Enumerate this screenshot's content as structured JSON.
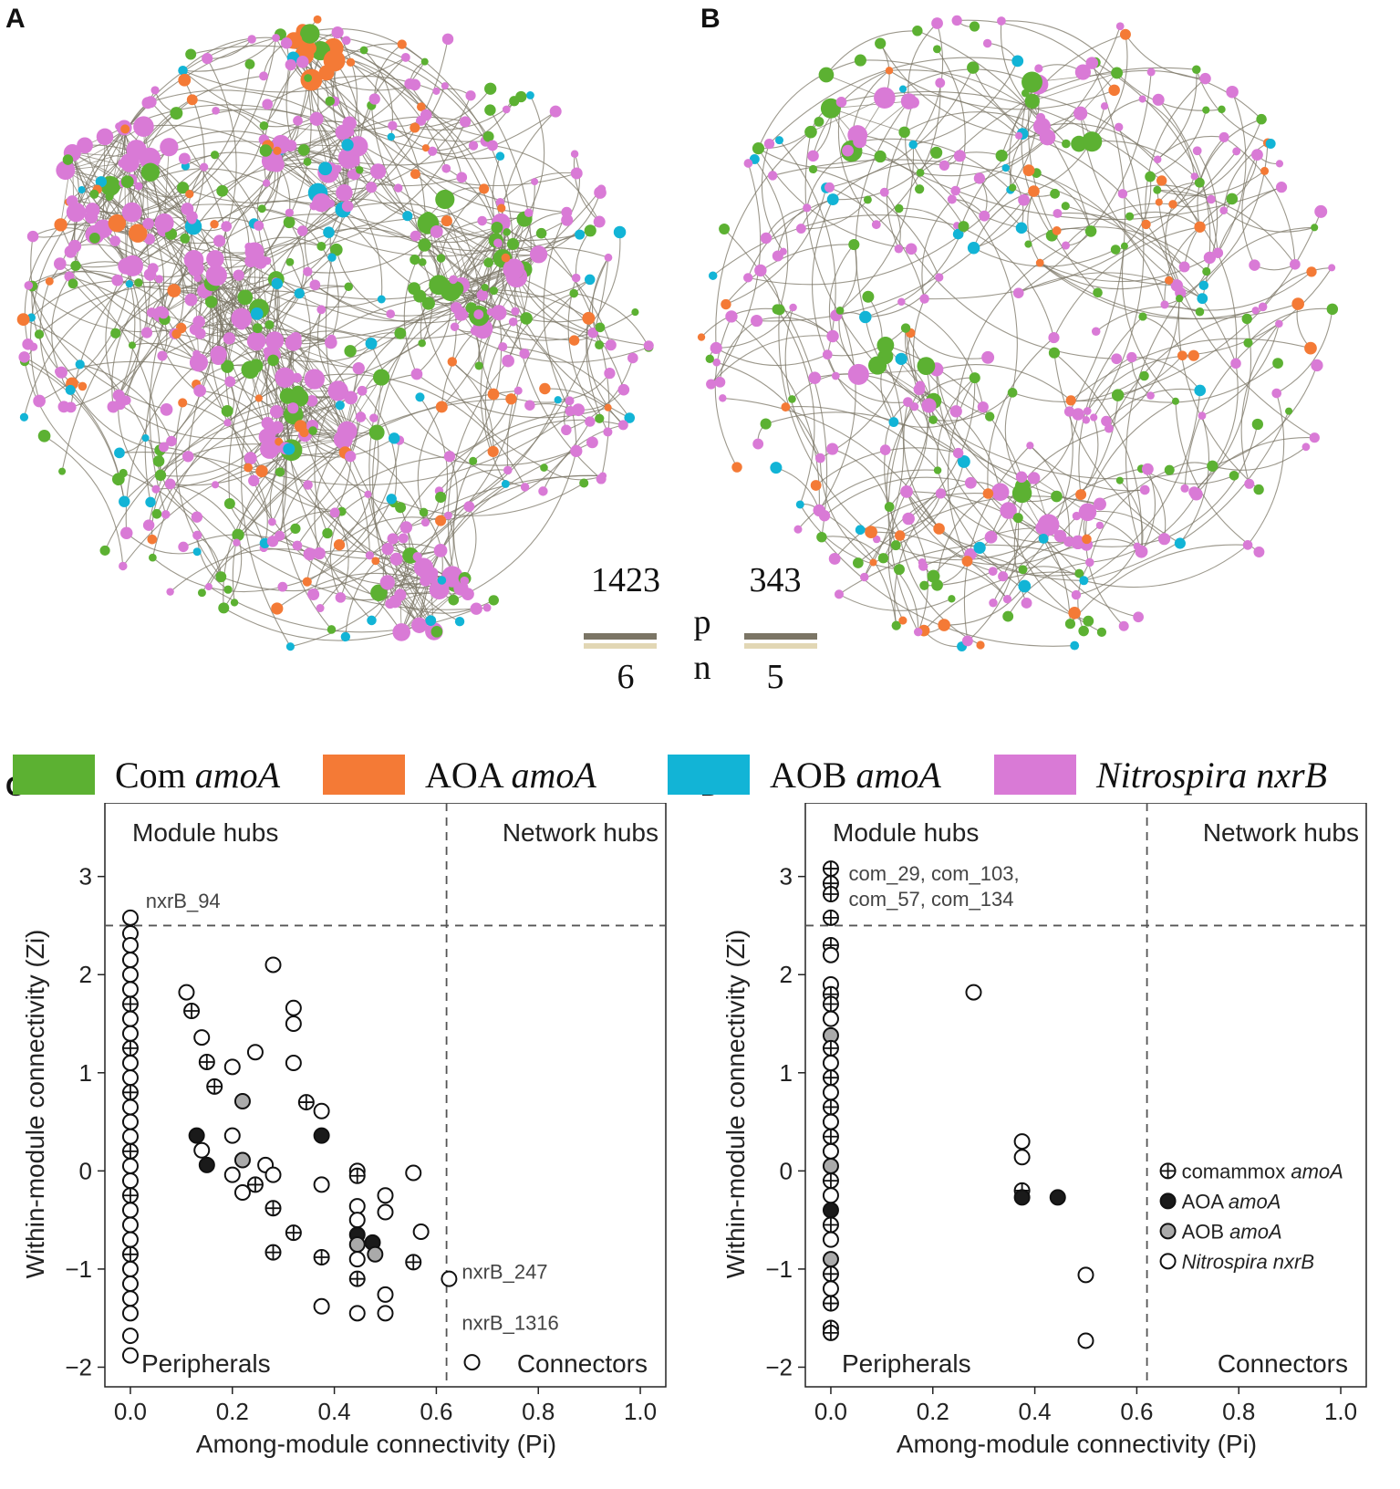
{
  "panels": {
    "a": "A",
    "b": "B",
    "c": "C",
    "d": "D"
  },
  "stats": {
    "p_label": "p",
    "n_label": "n",
    "a_p": "1423",
    "a_n": "6",
    "b_p": "343",
    "b_n": "5"
  },
  "colors": {
    "com": "#5cb132",
    "aoa": "#f47a36",
    "aob": "#12b4d6",
    "nxrb": "#d97ad6",
    "pos_edge": "#7b7565",
    "neg_edge": "#e2d7b5",
    "ref_line": "#555555"
  },
  "legend": [
    {
      "plain": "Com ",
      "italic": "amoA",
      "color": "#5cb132",
      "icon": "green-swatch"
    },
    {
      "plain": "AOA ",
      "italic": "amoA",
      "color": "#f47a36",
      "icon": "orange-swatch"
    },
    {
      "plain": "AOB ",
      "italic": "amoA",
      "color": "#12b4d6",
      "icon": "cyan-swatch"
    },
    {
      "plain": "",
      "italic": "Nitrospira nxrB",
      "color": "#d97ad6",
      "icon": "magenta-swatch"
    }
  ],
  "chart_data": [
    {
      "id": "C",
      "type": "scatter",
      "xlabel": "Among-module connectivity (Pi)",
      "ylabel": "Within-module connectivity (Zi)",
      "xlim": [
        -0.05,
        1.05
      ],
      "ylim": [
        -2.2,
        3.75
      ],
      "xticks": [
        "0.0",
        "0.2",
        "0.4",
        "0.6",
        "0.8",
        "1.0"
      ],
      "yticks": [
        "−2",
        "−1",
        "0",
        "1",
        "2",
        "3"
      ],
      "thresholds": {
        "pi": 0.62,
        "zi": 2.5
      },
      "regions": [
        "Module hubs",
        "Network hubs",
        "Peripherals",
        "Connectors"
      ],
      "annotations": [
        {
          "text": "nxrB_94",
          "x": 0.03,
          "y": 2.68
        },
        {
          "text": "nxrB_247",
          "x": 0.65,
          "y": -1.1
        },
        {
          "text": "nxrB_1316",
          "x": 0.65,
          "y": -1.62
        }
      ],
      "points": [
        {
          "x": 0.0,
          "y": 2.58,
          "g": "nxrb"
        },
        {
          "x": 0.0,
          "y": 2.42,
          "g": "nxrb"
        },
        {
          "x": 0.0,
          "y": 2.3,
          "g": "nxrb"
        },
        {
          "x": 0.0,
          "y": 2.15,
          "g": "nxrb"
        },
        {
          "x": 0.0,
          "y": 2.0,
          "g": "nxrb"
        },
        {
          "x": 0.0,
          "y": 1.85,
          "g": "nxrb"
        },
        {
          "x": 0.0,
          "y": 1.7,
          "g": "com"
        },
        {
          "x": 0.0,
          "y": 1.55,
          "g": "nxrb"
        },
        {
          "x": 0.0,
          "y": 1.4,
          "g": "nxrb"
        },
        {
          "x": 0.0,
          "y": 1.25,
          "g": "com"
        },
        {
          "x": 0.0,
          "y": 1.1,
          "g": "nxrb"
        },
        {
          "x": 0.0,
          "y": 0.95,
          "g": "nxrb"
        },
        {
          "x": 0.0,
          "y": 0.8,
          "g": "com"
        },
        {
          "x": 0.0,
          "y": 0.65,
          "g": "nxrb"
        },
        {
          "x": 0.0,
          "y": 0.5,
          "g": "nxrb"
        },
        {
          "x": 0.0,
          "y": 0.35,
          "g": "nxrb"
        },
        {
          "x": 0.0,
          "y": 0.2,
          "g": "com"
        },
        {
          "x": 0.0,
          "y": 0.05,
          "g": "nxrb"
        },
        {
          "x": 0.0,
          "y": -0.1,
          "g": "nxrb"
        },
        {
          "x": 0.0,
          "y": -0.25,
          "g": "com"
        },
        {
          "x": 0.0,
          "y": -0.4,
          "g": "nxrb"
        },
        {
          "x": 0.0,
          "y": -0.55,
          "g": "nxrb"
        },
        {
          "x": 0.0,
          "y": -0.7,
          "g": "nxrb"
        },
        {
          "x": 0.0,
          "y": -0.85,
          "g": "com"
        },
        {
          "x": 0.0,
          "y": -1.0,
          "g": "nxrb"
        },
        {
          "x": 0.0,
          "y": -1.15,
          "g": "nxrb"
        },
        {
          "x": 0.0,
          "y": -1.3,
          "g": "nxrb"
        },
        {
          "x": 0.0,
          "y": -1.45,
          "g": "nxrb"
        },
        {
          "x": 0.0,
          "y": -1.68,
          "g": "nxrb"
        },
        {
          "x": 0.0,
          "y": -1.88,
          "g": "nxrb"
        },
        {
          "x": 0.11,
          "y": 1.82,
          "g": "nxrb"
        },
        {
          "x": 0.12,
          "y": 1.63,
          "g": "com"
        },
        {
          "x": 0.14,
          "y": 1.36,
          "g": "nxrb"
        },
        {
          "x": 0.15,
          "y": 1.11,
          "g": "com"
        },
        {
          "x": 0.165,
          "y": 0.86,
          "g": "com"
        },
        {
          "x": 0.13,
          "y": 0.36,
          "g": "aoa"
        },
        {
          "x": 0.14,
          "y": 0.21,
          "g": "nxrb"
        },
        {
          "x": 0.15,
          "y": 0.06,
          "g": "aoa"
        },
        {
          "x": 0.2,
          "y": 1.06,
          "g": "nxrb"
        },
        {
          "x": 0.2,
          "y": 0.36,
          "g": "nxrb"
        },
        {
          "x": 0.2,
          "y": -0.04,
          "g": "nxrb"
        },
        {
          "x": 0.22,
          "y": 0.71,
          "g": "aob"
        },
        {
          "x": 0.22,
          "y": 0.11,
          "g": "aob"
        },
        {
          "x": 0.22,
          "y": -0.22,
          "g": "nxrb"
        },
        {
          "x": 0.245,
          "y": 1.21,
          "g": "nxrb"
        },
        {
          "x": 0.245,
          "y": -0.14,
          "g": "com"
        },
        {
          "x": 0.265,
          "y": 0.06,
          "g": "nxrb"
        },
        {
          "x": 0.28,
          "y": 2.1,
          "g": "nxrb"
        },
        {
          "x": 0.28,
          "y": -0.04,
          "g": "nxrb"
        },
        {
          "x": 0.28,
          "y": -0.38,
          "g": "com"
        },
        {
          "x": 0.28,
          "y": -0.83,
          "g": "com"
        },
        {
          "x": 0.32,
          "y": 1.66,
          "g": "nxrb"
        },
        {
          "x": 0.32,
          "y": 1.5,
          "g": "nxrb"
        },
        {
          "x": 0.32,
          "y": 1.1,
          "g": "nxrb"
        },
        {
          "x": 0.32,
          "y": -0.63,
          "g": "com"
        },
        {
          "x": 0.345,
          "y": 0.7,
          "g": "com"
        },
        {
          "x": 0.375,
          "y": 0.61,
          "g": "nxrb"
        },
        {
          "x": 0.375,
          "y": 0.36,
          "g": "aoa"
        },
        {
          "x": 0.375,
          "y": -0.14,
          "g": "nxrb"
        },
        {
          "x": 0.375,
          "y": -0.88,
          "g": "com"
        },
        {
          "x": 0.375,
          "y": -1.38,
          "g": "nxrb"
        },
        {
          "x": 0.445,
          "y": 0.0,
          "g": "nxrb"
        },
        {
          "x": 0.445,
          "y": -0.05,
          "g": "com"
        },
        {
          "x": 0.445,
          "y": -0.36,
          "g": "nxrb"
        },
        {
          "x": 0.445,
          "y": -0.5,
          "g": "nxrb"
        },
        {
          "x": 0.445,
          "y": -0.65,
          "g": "aoa"
        },
        {
          "x": 0.445,
          "y": -0.75,
          "g": "aob"
        },
        {
          "x": 0.445,
          "y": -0.9,
          "g": "nxrb"
        },
        {
          "x": 0.445,
          "y": -1.1,
          "g": "com"
        },
        {
          "x": 0.445,
          "y": -1.45,
          "g": "nxrb"
        },
        {
          "x": 0.475,
          "y": -0.73,
          "g": "aoa"
        },
        {
          "x": 0.48,
          "y": -0.85,
          "g": "aob"
        },
        {
          "x": 0.5,
          "y": -0.25,
          "g": "nxrb"
        },
        {
          "x": 0.5,
          "y": -0.42,
          "g": "nxrb"
        },
        {
          "x": 0.5,
          "y": -1.26,
          "g": "nxrb"
        },
        {
          "x": 0.5,
          "y": -1.45,
          "g": "nxrb"
        },
        {
          "x": 0.555,
          "y": -0.02,
          "g": "nxrb"
        },
        {
          "x": 0.555,
          "y": -0.93,
          "g": "com"
        },
        {
          "x": 0.57,
          "y": -0.62,
          "g": "nxrb"
        },
        {
          "x": 0.625,
          "y": -1.1,
          "g": "nxrb"
        },
        {
          "x": 0.67,
          "y": -1.95,
          "g": "nxrb"
        }
      ]
    },
    {
      "id": "D",
      "type": "scatter",
      "xlabel": "Among-module connectivity (Pi)",
      "ylabel": "Within-module connectivity (Zi)",
      "xlim": [
        -0.05,
        1.05
      ],
      "ylim": [
        -2.2,
        3.75
      ],
      "xticks": [
        "0.0",
        "0.2",
        "0.4",
        "0.6",
        "0.8",
        "1.0"
      ],
      "yticks": [
        "−2",
        "−1",
        "0",
        "1",
        "2",
        "3"
      ],
      "thresholds": {
        "pi": 0.62,
        "zi": 2.5
      },
      "regions": [
        "Module hubs",
        "Network hubs",
        "Peripherals",
        "Connectors"
      ],
      "annotations": [
        {
          "text": "com_29, com_103,",
          "x": 0.035,
          "y": 2.96
        },
        {
          "text": "com_57, com_134",
          "x": 0.035,
          "y": 2.7
        }
      ],
      "legend": [
        {
          "plain": "comammox ",
          "italic": "amoA",
          "g": "com"
        },
        {
          "plain": "AOA ",
          "italic": "amoA",
          "g": "aoa"
        },
        {
          "plain": "AOB ",
          "italic": "amoA",
          "g": "aob"
        },
        {
          "plain": "",
          "italic": "Nitrospira nxrB",
          "g": "nxrb"
        }
      ],
      "points": [
        {
          "x": 0.0,
          "y": 3.08,
          "g": "com"
        },
        {
          "x": 0.0,
          "y": 2.93,
          "g": "com"
        },
        {
          "x": 0.0,
          "y": 2.82,
          "g": "com"
        },
        {
          "x": 0.0,
          "y": 2.58,
          "g": "com"
        },
        {
          "x": 0.0,
          "y": 2.3,
          "g": "com"
        },
        {
          "x": 0.0,
          "y": 2.2,
          "g": "nxrb"
        },
        {
          "x": 0.0,
          "y": 1.9,
          "g": "nxrb"
        },
        {
          "x": 0.0,
          "y": 1.8,
          "g": "com"
        },
        {
          "x": 0.0,
          "y": 1.7,
          "g": "com"
        },
        {
          "x": 0.0,
          "y": 1.55,
          "g": "nxrb"
        },
        {
          "x": 0.0,
          "y": 1.38,
          "g": "aob"
        },
        {
          "x": 0.0,
          "y": 1.25,
          "g": "com"
        },
        {
          "x": 0.0,
          "y": 1.1,
          "g": "nxrb"
        },
        {
          "x": 0.0,
          "y": 0.95,
          "g": "com"
        },
        {
          "x": 0.0,
          "y": 0.8,
          "g": "nxrb"
        },
        {
          "x": 0.0,
          "y": 0.65,
          "g": "com"
        },
        {
          "x": 0.0,
          "y": 0.5,
          "g": "nxrb"
        },
        {
          "x": 0.0,
          "y": 0.35,
          "g": "com"
        },
        {
          "x": 0.0,
          "y": 0.2,
          "g": "nxrb"
        },
        {
          "x": 0.0,
          "y": 0.05,
          "g": "aob"
        },
        {
          "x": 0.0,
          "y": -0.1,
          "g": "com"
        },
        {
          "x": 0.0,
          "y": -0.25,
          "g": "nxrb"
        },
        {
          "x": 0.0,
          "y": -0.4,
          "g": "aoa"
        },
        {
          "x": 0.0,
          "y": -0.55,
          "g": "com"
        },
        {
          "x": 0.0,
          "y": -0.7,
          "g": "nxrb"
        },
        {
          "x": 0.0,
          "y": -0.9,
          "g": "aob"
        },
        {
          "x": 0.0,
          "y": -1.05,
          "g": "com"
        },
        {
          "x": 0.0,
          "y": -1.2,
          "g": "nxrb"
        },
        {
          "x": 0.0,
          "y": -1.35,
          "g": "com"
        },
        {
          "x": 0.0,
          "y": -1.6,
          "g": "com"
        },
        {
          "x": 0.0,
          "y": -1.65,
          "g": "com"
        },
        {
          "x": 0.28,
          "y": 1.82,
          "g": "nxrb"
        },
        {
          "x": 0.375,
          "y": 0.3,
          "g": "nxrb"
        },
        {
          "x": 0.375,
          "y": 0.14,
          "g": "nxrb"
        },
        {
          "x": 0.375,
          "y": -0.2,
          "g": "com"
        },
        {
          "x": 0.375,
          "y": -0.27,
          "g": "aoa"
        },
        {
          "x": 0.445,
          "y": -0.27,
          "g": "aoa"
        },
        {
          "x": 0.5,
          "y": -1.06,
          "g": "nxrb"
        },
        {
          "x": 0.5,
          "y": -1.73,
          "g": "nxrb"
        }
      ]
    }
  ]
}
